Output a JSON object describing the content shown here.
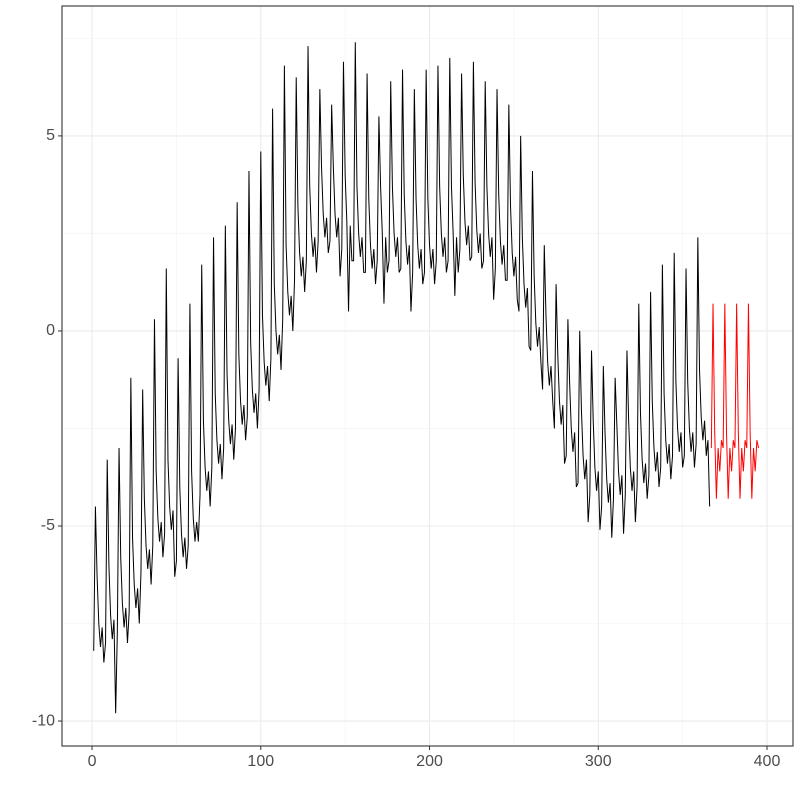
{
  "chart_data": {
    "type": "line",
    "xlim": [
      -17.8,
      415.4
    ],
    "ylim": [
      -10.64,
      8.33
    ],
    "xticks": [
      0,
      100,
      200,
      300,
      400
    ],
    "yticks": [
      -10,
      -5,
      0,
      5
    ],
    "grid": true,
    "minor_grid": true,
    "series": [
      {
        "color": "#000000",
        "x": [
          1,
          2,
          3,
          4,
          5,
          6,
          7,
          8,
          9,
          10,
          11,
          12,
          13,
          14,
          15,
          16,
          17,
          18,
          19,
          20,
          21,
          22,
          23,
          24,
          25,
          26,
          27,
          28,
          29,
          30,
          31,
          32,
          33,
          34,
          35,
          36,
          37,
          38,
          39,
          40,
          41,
          42,
          43,
          44,
          45,
          46,
          47,
          48,
          49,
          50,
          51,
          52,
          53,
          54,
          55,
          56,
          57,
          58,
          59,
          60,
          61,
          62,
          63,
          64,
          65,
          66,
          67,
          68,
          69,
          70,
          71,
          72,
          73,
          74,
          75,
          76,
          77,
          78,
          79,
          80,
          81,
          82,
          83,
          84,
          85,
          86,
          87,
          88,
          89,
          90,
          91,
          92,
          93,
          94,
          95,
          96,
          97,
          98,
          99,
          100,
          101,
          102,
          103,
          104,
          105,
          106,
          107,
          108,
          109,
          110,
          111,
          112,
          113,
          114,
          115,
          116,
          117,
          118,
          119,
          120,
          121,
          122,
          123,
          124,
          125,
          126,
          127,
          128,
          129,
          130,
          131,
          132,
          133,
          134,
          135,
          136,
          137,
          138,
          139,
          140,
          141,
          142,
          143,
          144,
          145,
          146,
          147,
          148,
          149,
          150,
          151,
          152,
          153,
          154,
          155,
          156,
          157,
          158,
          159,
          160,
          161,
          162,
          163,
          164,
          165,
          166,
          167,
          168,
          169,
          170,
          171,
          172,
          173,
          174,
          175,
          176,
          177,
          178,
          179,
          180,
          181,
          182,
          183,
          184,
          185,
          186,
          187,
          188,
          189,
          190,
          191,
          192,
          193,
          194,
          195,
          196,
          197,
          198,
          199,
          200,
          201,
          202,
          203,
          204,
          205,
          206,
          207,
          208,
          209,
          210,
          211,
          212,
          213,
          214,
          215,
          216,
          217,
          218,
          219,
          220,
          221,
          222,
          223,
          224,
          225,
          226,
          227,
          228,
          229,
          230,
          231,
          232,
          233,
          234,
          235,
          236,
          237,
          238,
          239,
          240,
          241,
          242,
          243,
          244,
          245,
          246,
          247,
          248,
          249,
          250,
          251,
          252,
          253,
          254,
          255,
          256,
          257,
          258,
          259,
          260,
          261,
          262,
          263,
          264,
          265,
          266,
          267,
          268,
          269,
          270,
          271,
          272,
          273,
          274,
          275,
          276,
          277,
          278,
          279,
          280,
          281,
          282,
          283,
          284,
          285,
          286,
          287,
          288,
          289,
          290,
          291,
          292,
          293,
          294,
          295,
          296,
          297,
          298,
          299,
          300,
          301,
          302,
          303,
          304,
          305,
          306,
          307,
          308,
          309,
          310,
          311,
          312,
          313,
          314,
          315,
          316,
          317,
          318,
          319,
          320,
          321,
          322,
          323,
          324,
          325,
          326,
          327,
          328,
          329,
          330,
          331,
          332,
          333,
          334,
          335,
          336,
          337,
          338,
          339,
          340,
          341,
          342,
          343,
          344,
          345,
          346,
          347,
          348,
          349,
          350,
          351,
          352,
          353,
          354,
          355,
          356,
          357,
          358,
          359,
          360,
          361,
          362,
          363,
          364,
          365,
          366
        ],
        "values": [
          -8.2,
          -4.5,
          -6.3,
          -7.5,
          -8.1,
          -7.6,
          -8.5,
          -8.0,
          -3.3,
          -6.0,
          -7.3,
          -7.9,
          -7.4,
          -9.8,
          -7.7,
          -3.0,
          -5.8,
          -7.0,
          -7.6,
          -7.1,
          -8.0,
          -7.2,
          -1.2,
          -5.3,
          -6.5,
          -7.1,
          -6.6,
          -7.5,
          -6.2,
          -1.5,
          -4.3,
          -5.5,
          -6.1,
          -5.6,
          -6.5,
          -5.5,
          0.3,
          -3.6,
          -4.8,
          -5.4,
          -4.9,
          -5.8,
          -5.2,
          1.6,
          -3.3,
          -4.5,
          -5.1,
          -4.6,
          -6.3,
          -5.9,
          -0.7,
          -4.0,
          -5.2,
          -5.8,
          -5.3,
          -6.1,
          -5.5,
          0.7,
          -3.6,
          -4.8,
          -5.4,
          -4.9,
          -5.4,
          -4.2,
          1.7,
          -2.3,
          -3.5,
          -4.1,
          -3.6,
          -4.5,
          -3.5,
          2.4,
          -1.6,
          -2.8,
          -3.4,
          -2.9,
          -3.8,
          -3.0,
          2.7,
          -1.1,
          -2.3,
          -2.9,
          -2.4,
          -3.3,
          -2.5,
          3.3,
          -0.6,
          -1.8,
          -2.4,
          -1.9,
          -2.8,
          -2.2,
          4.1,
          -0.3,
          -1.5,
          -2.1,
          -1.6,
          -2.5,
          -1.5,
          4.6,
          0.4,
          -0.8,
          -1.4,
          -0.9,
          -1.8,
          -0.7,
          5.7,
          1.2,
          0.0,
          -0.6,
          -0.1,
          -1.0,
          0.3,
          6.8,
          2.2,
          1.0,
          0.4,
          0.9,
          0.0,
          1.3,
          6.5,
          3.2,
          2.0,
          1.4,
          1.9,
          1.0,
          1.8,
          7.3,
          3.7,
          2.5,
          1.9,
          2.4,
          1.5,
          2.3,
          6.2,
          4.2,
          3.0,
          2.4,
          2.9,
          2.0,
          2.3,
          5.8,
          4.2,
          3.0,
          2.4,
          2.9,
          1.4,
          2.1,
          6.9,
          4.0,
          2.8,
          0.5,
          2.7,
          1.8,
          1.8,
          7.4,
          3.7,
          2.5,
          1.9,
          2.4,
          1.5,
          1.5,
          6.6,
          3.4,
          2.2,
          1.6,
          2.1,
          1.2,
          1.8,
          5.5,
          3.7,
          2.5,
          0.7,
          2.4,
          1.5,
          1.8,
          6.4,
          3.7,
          2.5,
          1.9,
          2.4,
          1.5,
          1.6,
          6.7,
          3.5,
          2.3,
          1.7,
          2.2,
          0.5,
          1.5,
          6.2,
          3.4,
          2.2,
          1.6,
          2.1,
          1.2,
          1.5,
          6.7,
          3.4,
          2.2,
          1.6,
          2.1,
          1.2,
          1.8,
          6.8,
          3.7,
          2.5,
          1.9,
          2.4,
          1.5,
          1.8,
          7.0,
          3.7,
          2.5,
          0.9,
          2.4,
          1.5,
          2.1,
          6.6,
          4.0,
          2.8,
          2.2,
          2.7,
          1.8,
          1.9,
          6.9,
          3.8,
          2.6,
          2.0,
          2.5,
          1.6,
          1.8,
          6.4,
          3.7,
          2.5,
          1.9,
          2.4,
          0.8,
          1.6,
          6.2,
          3.5,
          2.3,
          1.7,
          2.2,
          1.3,
          1.3,
          5.8,
          3.2,
          2.0,
          1.4,
          1.9,
          0.8,
          0.5,
          5.0,
          2.4,
          1.2,
          0.6,
          1.1,
          -0.4,
          -0.5,
          4.1,
          1.4,
          0.2,
          -0.4,
          0.1,
          -0.8,
          -1.5,
          2.2,
          0.4,
          -0.8,
          -1.4,
          -0.9,
          -1.8,
          -2.5,
          1.2,
          -0.6,
          -1.8,
          -2.4,
          -1.9,
          -3.4,
          -3.2,
          0.3,
          -1.3,
          -2.5,
          -3.1,
          -2.6,
          -4.0,
          -3.9,
          0.0,
          -2.0,
          -3.2,
          -3.8,
          -3.3,
          -4.9,
          -4.2,
          -0.5,
          -2.3,
          -3.5,
          -4.1,
          -3.6,
          -5.1,
          -4.5,
          -0.9,
          -2.6,
          -3.8,
          -4.4,
          -3.9,
          -5.3,
          -4.3,
          -1.2,
          -2.4,
          -3.6,
          -4.2,
          -3.7,
          -5.2,
          -4.2,
          -0.5,
          -2.3,
          -3.5,
          -4.1,
          -3.6,
          -4.9,
          -4.0,
          0.7,
          -2.1,
          -3.3,
          -3.9,
          -3.4,
          -4.3,
          -3.7,
          1.0,
          -1.8,
          -3.0,
          -3.6,
          -3.1,
          -4.0,
          -3.5,
          1.7,
          -1.6,
          -2.8,
          -3.4,
          -2.9,
          -3.8,
          -3.2,
          2.0,
          -1.3,
          -2.5,
          -3.1,
          -2.6,
          -3.5,
          -3.2,
          1.6,
          -1.3,
          -2.5,
          -3.1,
          -2.6,
          -3.5,
          -2.9,
          2.4,
          -1.0,
          -2.2,
          -2.8,
          -2.3,
          -3.2,
          -2.8,
          -4.5
        ]
      },
      {
        "color": "#ff0000",
        "x": [
          367,
          368,
          369,
          370,
          371,
          372,
          373,
          374,
          375,
          376,
          377,
          378,
          379,
          380,
          381,
          382,
          383,
          384,
          385,
          386,
          387,
          388,
          389,
          390,
          391,
          392,
          393,
          394,
          395
        ],
        "values": [
          -3.0,
          0.7,
          -2.6,
          -4.3,
          -3.0,
          -3.6,
          -2.8,
          -3.0,
          0.7,
          -2.6,
          -4.3,
          -3.0,
          -3.6,
          -2.8,
          -3.0,
          0.7,
          -2.6,
          -4.3,
          -3.0,
          -3.6,
          -2.8,
          -3.0,
          0.7,
          -2.6,
          -4.3,
          -3.0,
          -3.6,
          -2.8,
          -3.0
        ]
      }
    ]
  }
}
